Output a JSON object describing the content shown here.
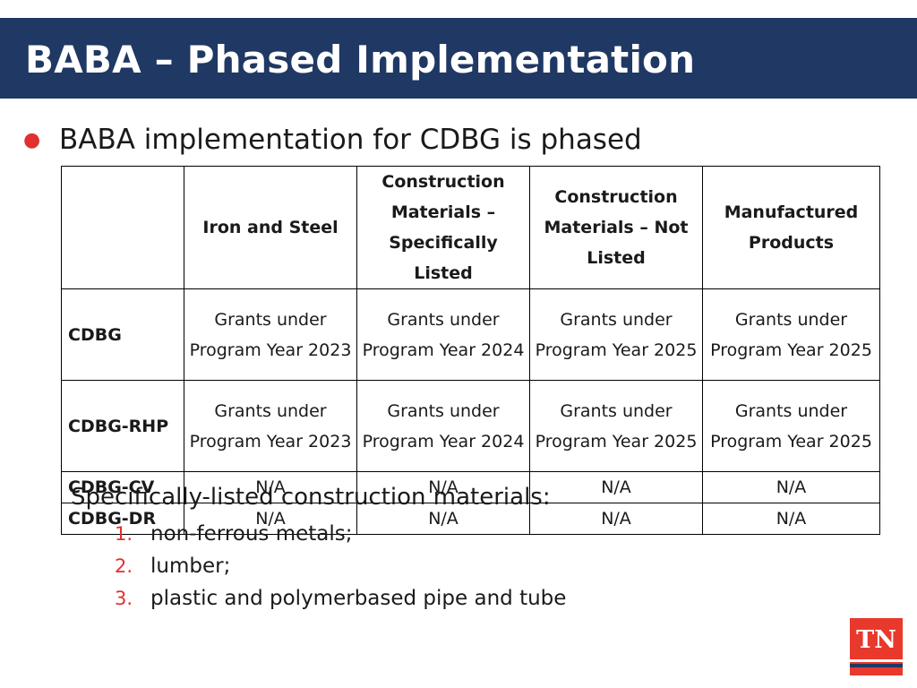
{
  "slide": {
    "title": "BABA – Phased Implementation",
    "bullet": "BABA implementation for CDBG is phased"
  },
  "table": {
    "headers": [
      "",
      "Iron and Steel",
      "Construction Materials – Specifically Listed",
      "Construction Materials – Not Listed",
      "Manufactured Products"
    ],
    "rows": [
      {
        "program": "CDBG",
        "cells": [
          "Grants under Program Year 2023",
          "Grants under Program Year 2024",
          "Grants under Program Year 2025",
          "Grants under Program Year 2025"
        ]
      },
      {
        "program": "CDBG-RHP",
        "cells": [
          "Grants under Program Year 2023",
          "Grants under Program Year 2024",
          "Grants under Program Year 2025",
          "Grants under Program Year 2025"
        ]
      },
      {
        "program": "CDBG-CV",
        "cells": [
          "N/A",
          "N/A",
          "N/A",
          "N/A"
        ]
      },
      {
        "program": "CDBG-DR",
        "cells": [
          "N/A",
          "N/A",
          "N/A",
          "N/A"
        ]
      }
    ]
  },
  "materials": {
    "heading": "Specifically-listed construction materials:",
    "items": [
      {
        "num": "1.",
        "text": "non-ferrous metals;"
      },
      {
        "num": "2.",
        "text": "lumber;"
      },
      {
        "num": "3.",
        "text": "plastic and polymerbased pipe and tube"
      }
    ]
  },
  "logo": {
    "text": "TN",
    "color": "#e8392c"
  },
  "colors": {
    "title_bar": "#1f3864",
    "accent": "#e03030"
  }
}
